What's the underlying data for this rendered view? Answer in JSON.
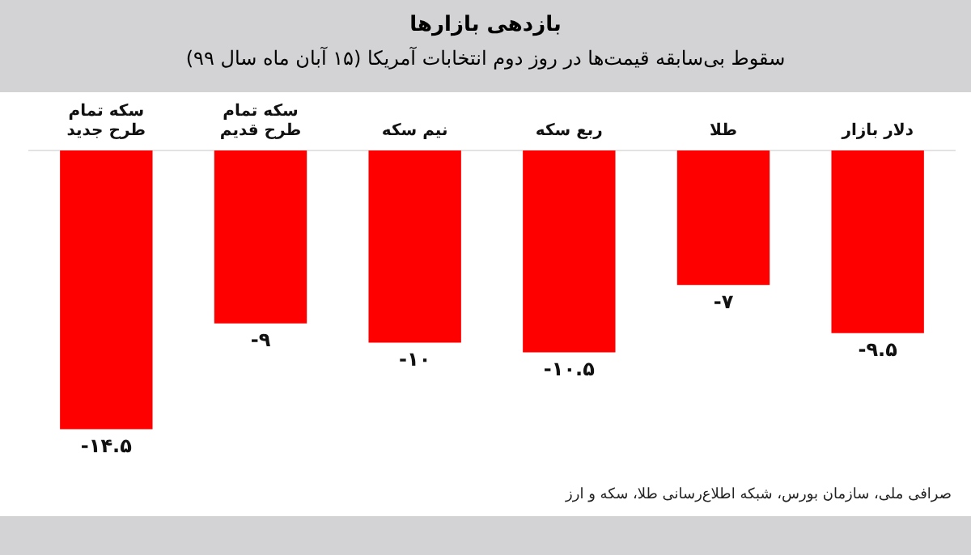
{
  "chart_data": {
    "type": "bar",
    "title": "بازدهی بازارها",
    "subtitle": "سقوط بی‌سابقه قیمت‌ها در روز دوم انتخابات آمریکا (۱۵ آبان ماه سال ۹۹)",
    "categories": [
      "سکه تمام طرح جدید",
      "سکه تمام طرح قدیم",
      "نیم سکه",
      "ربع سکه",
      "طلا",
      "دلار بازار"
    ],
    "values": [
      -14.5,
      -9,
      -10,
      -10.5,
      -7,
      -9.5
    ],
    "value_labels": [
      "-۱۴.۵",
      "-۹",
      "-۱۰",
      "-۱۰.۵",
      "-۷",
      "-۹.۵"
    ],
    "color": "#ff0000",
    "tick_labels": "x",
    "grid": false,
    "legend": false,
    "annotations": [
      "صرافی ملی، سازمان بورس، شبکه اطلاع‌رسانی طلا، سکه و ارز"
    ]
  }
}
